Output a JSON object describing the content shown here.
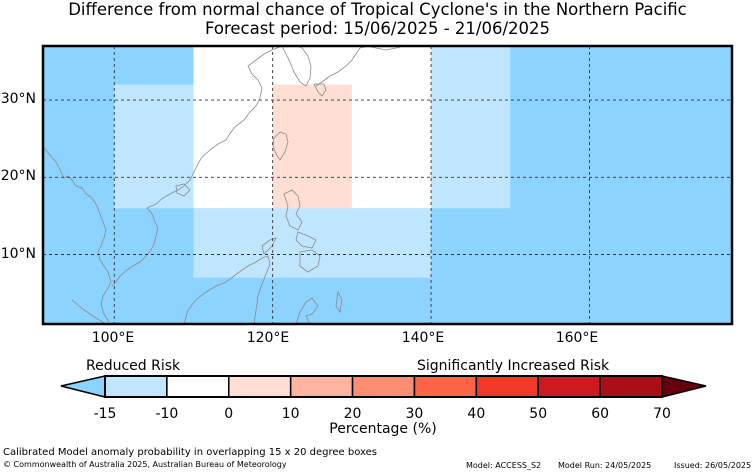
{
  "title_line1": "Difference from normal chance of Tropical Cyclone's in the Northern Pacific",
  "title_line2": "Forecast period: 15/06/2025 - 21/06/2025",
  "map": {
    "lon_range": [
      91,
      178
    ],
    "lat_range": [
      1,
      37
    ],
    "lat_labels": [
      "30°N",
      "20°N",
      "10°N"
    ],
    "lon_labels": [
      "100°E",
      "120°E",
      "140°E",
      "160°E"
    ],
    "base_color": "#8dd3ff",
    "boxes": [
      {
        "lon": [
          110,
          140
        ],
        "lat": [
          7,
          16
        ],
        "color": "#c0e6ff"
      },
      {
        "lon": [
          100,
          110
        ],
        "lat": [
          16,
          32
        ],
        "color": "#c0e6ff"
      },
      {
        "lon": [
          140,
          150
        ],
        "lat": [
          16,
          37
        ],
        "color": "#c0e6ff"
      },
      {
        "lon": [
          110,
          140
        ],
        "lat": [
          16,
          37
        ],
        "color": "#ffffff"
      },
      {
        "lon": [
          120,
          130
        ],
        "lat": [
          16,
          32
        ],
        "color": "#ffdfd4"
      }
    ]
  },
  "colorbar": {
    "reduced_label": "Reduced Risk",
    "increased_label": "Significantly Increased Risk",
    "ticks": [
      "-15",
      "-10",
      "0",
      "10",
      "20",
      "30",
      "40",
      "50",
      "60",
      "70"
    ],
    "colors": [
      "#c0e6ff",
      "#ffffff",
      "#ffdfd4",
      "#feb49f",
      "#fe8e71",
      "#fc6447",
      "#ef3a2a",
      "#cd1a1e",
      "#a90f16"
    ],
    "under_color": "#8dd3ff",
    "over_color": "#67000d",
    "label": "Percentage (%)"
  },
  "footer": {
    "note": "Calibrated Model anomaly probability in overlapping 15 x 20 degree boxes",
    "copyright": "© Commonwealth of Australia 2025, Australian Bureau of Meteorology",
    "model": "Model: ACCESS_S2",
    "model_run": "Model Run: 24/05/2025",
    "issued": "Issued: 26/05/2025"
  }
}
